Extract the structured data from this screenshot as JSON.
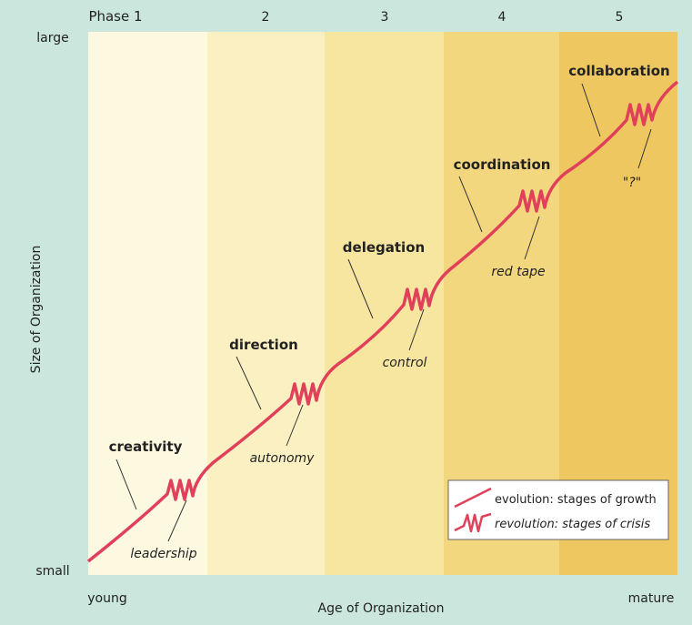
{
  "phases": [
    "Phase 1",
    "2",
    "3",
    "4",
    "5"
  ],
  "axes": {
    "y_top": "large",
    "y_bottom": "small",
    "y_title": "Size of Organization",
    "x_left": "young",
    "x_right": "mature",
    "x_title": "Age of Organization"
  },
  "stages": [
    {
      "evolution": "creativity",
      "revolution": "leadership"
    },
    {
      "evolution": "direction",
      "revolution": "autonomy"
    },
    {
      "evolution": "delegation",
      "revolution": "control"
    },
    {
      "evolution": "coordination",
      "revolution": "red tape"
    },
    {
      "evolution": "collaboration",
      "revolution": "\"?\""
    }
  ],
  "legend": {
    "evolution": "evolution: stages of growth",
    "revolution": "revolution: stages of crisis"
  }
}
